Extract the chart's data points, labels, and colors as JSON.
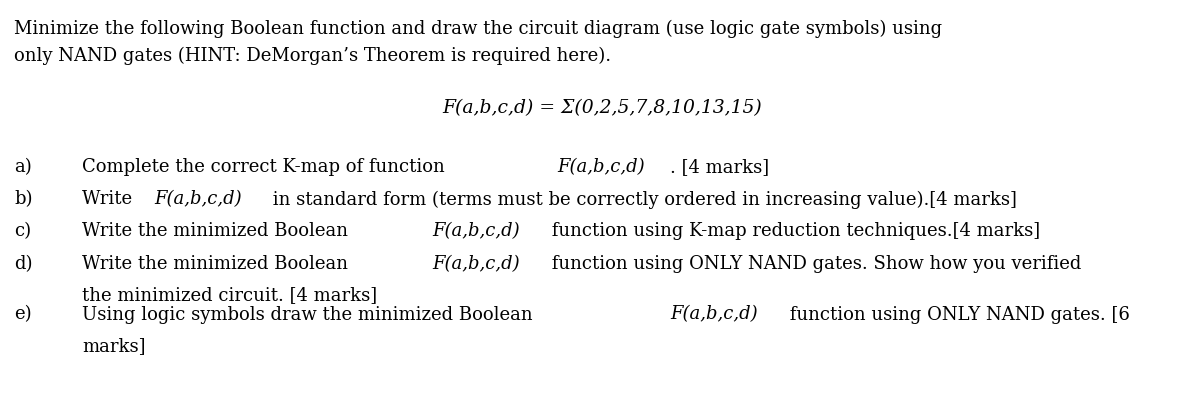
{
  "bg_color": "#ffffff",
  "title_line1": "Minimize the following Boolean function and draw the circuit diagram (use logic gate symbols) using",
  "title_line2": "only NAND gates (HINT: DeMorgan’s Theorem is required here).",
  "formula": "F(a,b,c,d) = Σ(0,2,5,7,8,10,13,15)",
  "font_size": 13.0,
  "formula_font_size": 13.5,
  "items": [
    {
      "label": "a)",
      "parts": [
        {
          "text": "Complete the correct K-map of function ",
          "italic": false
        },
        {
          "text": "F(a,b,c,d)",
          "italic": true
        },
        {
          "text": ". [4 marks]",
          "italic": false
        }
      ]
    },
    {
      "label": "b)",
      "parts": [
        {
          "text": "Write ",
          "italic": false
        },
        {
          "text": "F(a,b,c,d)",
          "italic": true
        },
        {
          "text": " in standard form (terms must be correctly ordered in increasing value).[4 marks]",
          "italic": false
        }
      ]
    },
    {
      "label": "c)",
      "parts": [
        {
          "text": "Write the minimized Boolean ",
          "italic": false
        },
        {
          "text": "F(a,b,c,d)",
          "italic": true
        },
        {
          "text": " function using K-map reduction techniques.[4 marks]",
          "italic": false
        }
      ]
    },
    {
      "label": "d)",
      "parts": [
        {
          "text": "Write the minimized Boolean ",
          "italic": false
        },
        {
          "text": "F(a,b,c,d)",
          "italic": true
        },
        {
          "text": " function using ONLY NAND gates. Show how you verified",
          "italic": false
        }
      ],
      "continuation": "the minimized circuit. [4 marks]"
    },
    {
      "label": "e)",
      "parts": [
        {
          "text": "Using logic symbols draw the minimized Boolean ",
          "italic": false
        },
        {
          "text": "F(a,b,c,d)",
          "italic": true
        },
        {
          "text": " function using ONLY NAND gates. [6",
          "italic": false
        }
      ],
      "continuation": "marks]"
    }
  ]
}
